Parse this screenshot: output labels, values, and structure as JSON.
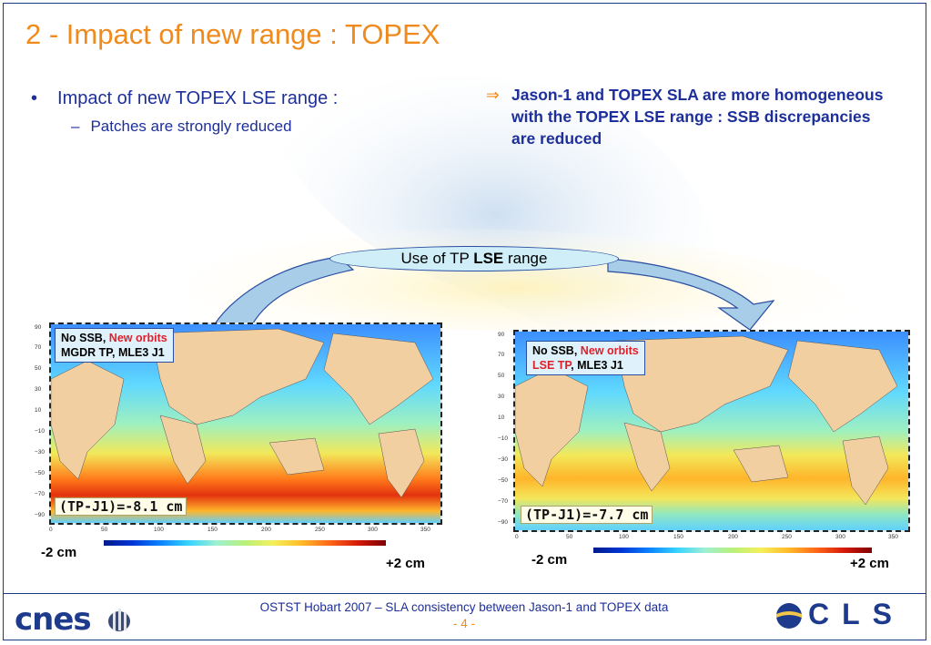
{
  "slide": {
    "title": "2 -  Impact of new range : TOPEX",
    "bullet1": "Impact of  new TOPEX LSE range :",
    "bullet2": "Patches are strongly reduced",
    "bullet_symbol": "•",
    "dash_symbol": "–",
    "arrow_symbol": "⇒",
    "conclusion": "Jason-1 and TOPEX SLA are more homogeneous with the TOPEX LSE range : SSB discrepancies are reduced",
    "callout": {
      "prefix": "Use of TP ",
      "bold": "LSE",
      "suffix": " range"
    }
  },
  "maps": [
    {
      "label_line1_black": "No SSB, ",
      "label_line1_red": "New orbits",
      "label_line2_red": "",
      "label_line2_black": "MGDR TP, MLE3 J1",
      "difference": "(TP-J1)=-8.1 cm",
      "colorbar_min": "-2 cm",
      "colorbar_max": "+2 cm"
    },
    {
      "label_line1_black": "No SSB, ",
      "label_line1_red": "New orbits",
      "label_line2_red": "LSE TP",
      "label_line2_black": ", MLE3 J1",
      "difference": "(TP-J1)=-7.7 cm",
      "colorbar_min": "-2 cm",
      "colorbar_max": "+2 cm"
    }
  ],
  "axes": {
    "y_ticks": [
      "90",
      "70",
      "50",
      "30",
      "10",
      "−10",
      "−30",
      "−50",
      "−70",
      "−90"
    ],
    "x_ticks": [
      "0",
      "50",
      "100",
      "150",
      "200",
      "250",
      "300",
      "350"
    ]
  },
  "footer": {
    "text": "OSTST Hobart 2007 – SLA consistency between Jason-1 and TOPEX data",
    "page": "- 4 -",
    "left_logo": "cnes",
    "right_logo": "CLS"
  },
  "colors": {
    "title": "#f08a1c",
    "body_text": "#1d2f9a",
    "highlight_red": "#e0202a",
    "frame": "#1b3a8a"
  }
}
